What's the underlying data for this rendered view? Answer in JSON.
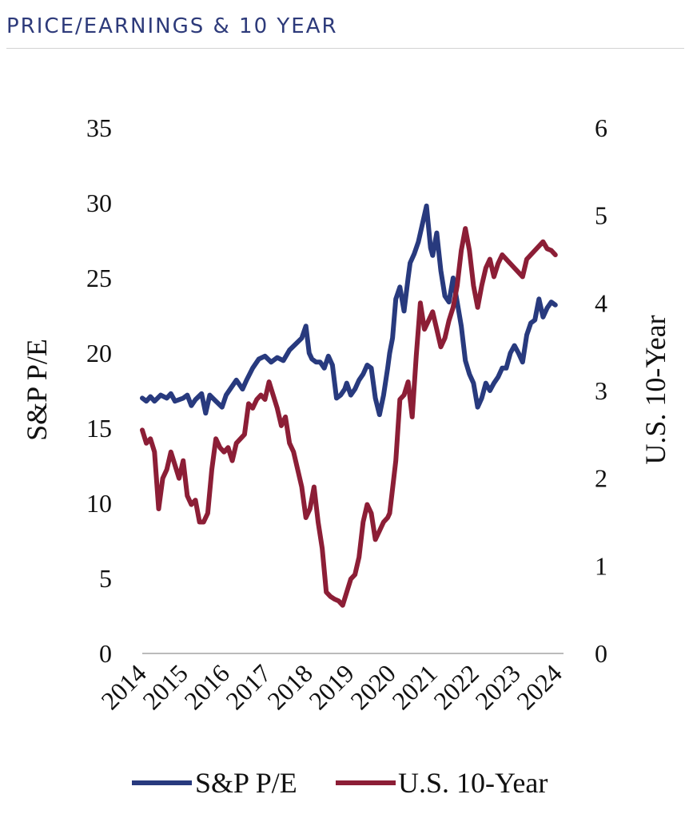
{
  "header": {
    "title": "PRICE/EARNINGS & 10 YEAR"
  },
  "colors": {
    "pe": "#283a7e",
    "ten_year": "#8c1e36",
    "axis": "#bbbbbb",
    "text": "#111111"
  },
  "chart_data": {
    "type": "line",
    "title": "PRICE/EARNINGS & 10 YEAR",
    "xlabel": "",
    "ylabel": "S&P P/E",
    "y2label": "U.S. 10-Year",
    "ylim": [
      0,
      35
    ],
    "y2lim": [
      0,
      6
    ],
    "xlim": [
      2014,
      2024.3
    ],
    "yticks": [
      "0",
      "5",
      "10",
      "15",
      "20",
      "25",
      "30",
      "35"
    ],
    "y2ticks": [
      "0",
      "1",
      "2",
      "3",
      "4",
      "5",
      "6"
    ],
    "xticks": [
      "2014",
      "2015",
      "2016",
      "2017",
      "2018",
      "2019",
      "2020",
      "2021",
      "2022",
      "2023",
      "2024"
    ],
    "legend": "bottom",
    "series": [
      {
        "name": "S&P P/E",
        "axis": "left",
        "x": [
          2014.0,
          2014.1,
          2014.2,
          2014.3,
          2014.45,
          2014.6,
          2014.7,
          2014.8,
          2015.0,
          2015.1,
          2015.2,
          2015.3,
          2015.45,
          2015.55,
          2015.65,
          2015.8,
          2015.95,
          2016.05,
          2016.15,
          2016.3,
          2016.45,
          2016.55,
          2016.7,
          2016.85,
          2017.0,
          2017.15,
          2017.3,
          2017.45,
          2017.6,
          2017.75,
          2017.9,
          2018.0,
          2018.08,
          2018.15,
          2018.25,
          2018.35,
          2018.45,
          2018.55,
          2018.65,
          2018.75,
          2018.85,
          2018.95,
          2019.0,
          2019.1,
          2019.2,
          2019.3,
          2019.4,
          2019.5,
          2019.6,
          2019.7,
          2019.8,
          2019.9,
          2020.0,
          2020.05,
          2020.12,
          2020.2,
          2020.3,
          2020.4,
          2020.5,
          2020.55,
          2020.65,
          2020.75,
          2020.85,
          2020.95,
          2021.05,
          2021.1,
          2021.2,
          2021.3,
          2021.4,
          2021.5,
          2021.6,
          2021.7,
          2021.8,
          2021.9,
          2022.0,
          2022.1,
          2022.2,
          2022.3,
          2022.4,
          2022.5,
          2022.6,
          2022.7,
          2022.8,
          2022.9,
          2023.0,
          2023.1,
          2023.2,
          2023.3,
          2023.4,
          2023.5,
          2023.6,
          2023.7,
          2023.8,
          2023.9,
          2024.0,
          2024.1
        ],
        "values": [
          17.0,
          16.8,
          17.1,
          16.8,
          17.2,
          17.0,
          17.3,
          16.8,
          17.0,
          17.2,
          16.5,
          16.9,
          17.3,
          16.0,
          17.2,
          16.8,
          16.4,
          17.2,
          17.6,
          18.2,
          17.6,
          18.2,
          19.0,
          19.6,
          19.8,
          19.4,
          19.7,
          19.5,
          20.2,
          20.6,
          21.0,
          21.8,
          20.0,
          19.6,
          19.4,
          19.4,
          19.0,
          19.8,
          19.2,
          17.0,
          17.2,
          17.6,
          18.0,
          17.2,
          17.6,
          18.2,
          18.6,
          19.2,
          19.0,
          17.0,
          15.9,
          17.2,
          19.0,
          20.0,
          21.0,
          23.6,
          24.4,
          22.8,
          25.0,
          26.0,
          26.6,
          27.4,
          28.6,
          29.8,
          27.0,
          26.5,
          28.0,
          25.5,
          23.8,
          23.4,
          25.0,
          23.4,
          21.8,
          19.5,
          18.6,
          18.0,
          16.4,
          17.0,
          18.0,
          17.5,
          18.0,
          18.4,
          19.0,
          19.0,
          20.0,
          20.5,
          20.0,
          19.4,
          21.2,
          22.0,
          22.2,
          23.6,
          22.4,
          23.0,
          23.4,
          23.2
        ]
      },
      {
        "name": "U.S. 10-Year",
        "axis": "right",
        "x": [
          2014.0,
          2014.1,
          2014.2,
          2014.3,
          2014.4,
          2014.5,
          2014.6,
          2014.7,
          2014.8,
          2014.9,
          2015.0,
          2015.1,
          2015.2,
          2015.3,
          2015.4,
          2015.5,
          2015.6,
          2015.7,
          2015.8,
          2015.9,
          2016.0,
          2016.1,
          2016.2,
          2016.3,
          2016.4,
          2016.5,
          2016.6,
          2016.7,
          2016.8,
          2016.9,
          2017.0,
          2017.1,
          2017.2,
          2017.3,
          2017.4,
          2017.5,
          2017.6,
          2017.7,
          2017.8,
          2017.9,
          2018.0,
          2018.1,
          2018.2,
          2018.3,
          2018.4,
          2018.5,
          2018.6,
          2018.7,
          2018.8,
          2018.9,
          2019.0,
          2019.1,
          2019.2,
          2019.3,
          2019.4,
          2019.5,
          2019.6,
          2019.7,
          2019.8,
          2019.9,
          2020.0,
          2020.05,
          2020.1,
          2020.2,
          2020.3,
          2020.4,
          2020.5,
          2020.6,
          2020.7,
          2020.8,
          2020.9,
          2021.0,
          2021.1,
          2021.2,
          2021.3,
          2021.4,
          2021.5,
          2021.6,
          2021.7,
          2021.8,
          2021.9,
          2022.0,
          2022.1,
          2022.2,
          2022.3,
          2022.4,
          2022.5,
          2022.6,
          2022.7,
          2022.8,
          2022.9,
          2023.0,
          2023.1,
          2023.2,
          2023.3,
          2023.4,
          2023.5,
          2023.6,
          2023.7,
          2023.8,
          2023.9,
          2024.0,
          2024.1
        ],
        "values": [
          2.55,
          2.4,
          2.45,
          2.3,
          1.65,
          2.0,
          2.1,
          2.3,
          2.15,
          2.0,
          2.2,
          1.8,
          1.7,
          1.75,
          1.5,
          1.5,
          1.6,
          2.1,
          2.45,
          2.35,
          2.3,
          2.35,
          2.2,
          2.4,
          2.45,
          2.5,
          2.85,
          2.8,
          2.9,
          2.95,
          2.9,
          3.1,
          2.95,
          2.8,
          2.6,
          2.7,
          2.4,
          2.3,
          2.1,
          1.9,
          1.55,
          1.65,
          1.9,
          1.5,
          1.2,
          0.7,
          0.65,
          0.62,
          0.6,
          0.55,
          0.7,
          0.85,
          0.9,
          1.1,
          1.5,
          1.7,
          1.6,
          1.3,
          1.4,
          1.5,
          1.55,
          1.6,
          1.8,
          2.2,
          2.9,
          2.95,
          3.1,
          2.7,
          3.4,
          4.0,
          3.7,
          3.8,
          3.9,
          3.7,
          3.5,
          3.6,
          3.8,
          3.95,
          4.2,
          4.6,
          4.85,
          4.6,
          4.2,
          3.95,
          4.2,
          4.4,
          4.5,
          4.3,
          4.45,
          4.55,
          4.5,
          4.45,
          4.4,
          4.35,
          4.3,
          4.5,
          4.55,
          4.6,
          4.65,
          4.7,
          4.62,
          4.6,
          4.55
        ]
      }
    ]
  }
}
